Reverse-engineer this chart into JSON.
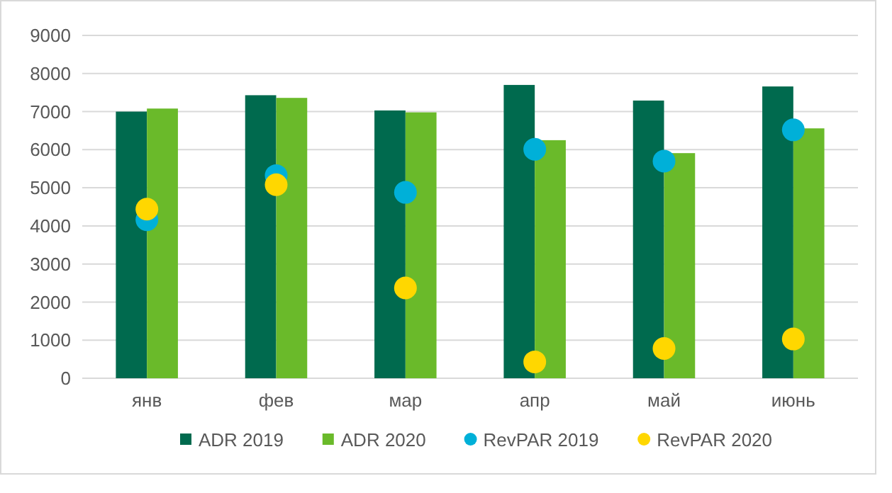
{
  "chart_data": {
    "type": "bar",
    "categories": [
      "янв",
      "фев",
      "мар",
      "апр",
      "май",
      "июнь"
    ],
    "series": [
      {
        "name": "ADR 2019",
        "color": "#006a4e",
        "values": [
          7000,
          7430,
          7030,
          7700,
          7290,
          7660
        ]
      },
      {
        "name": "ADR 2020",
        "color": "#6aba2a",
        "values": [
          7080,
          7360,
          6980,
          6250,
          5910,
          6560
        ]
      },
      {
        "name": "RevPAR 2019",
        "type": "scatter",
        "color": "#00b0d8",
        "x": [
          "янв",
          "фев",
          "мар",
          "апр",
          "май",
          "июнь"
        ],
        "values": [
          4160,
          5320,
          4880,
          6010,
          5700,
          6520
        ]
      },
      {
        "name": "RevPAR 2020",
        "type": "scatter",
        "color": "#ffd700",
        "x": [
          "янв",
          "фев",
          "мар",
          "апр",
          "май",
          "июнь"
        ],
        "values": [
          4440,
          5080,
          2370,
          430,
          780,
          1030
        ]
      }
    ],
    "ylim": [
      0,
      9000
    ],
    "yticks": [
      0,
      1000,
      2000,
      3000,
      4000,
      5000,
      6000,
      7000,
      8000,
      9000
    ],
    "grid": "y",
    "legend": "bottom",
    "marker": "circle"
  }
}
